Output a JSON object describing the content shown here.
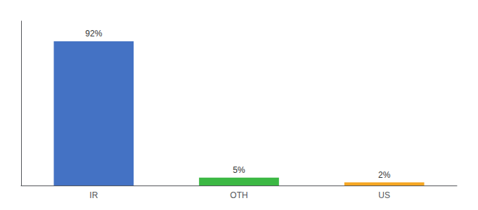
{
  "chart_data": {
    "type": "bar",
    "categories": [
      "IR",
      "OTH",
      "US"
    ],
    "values": [
      92,
      5,
      2
    ],
    "value_labels": [
      "92%",
      "5%",
      "2%"
    ],
    "data_labels": true,
    "colors": [
      "#4472c4",
      "#3cb844",
      "#f5a623"
    ],
    "ylim": [
      0,
      105
    ],
    "tick_labels": "x",
    "grid": false
  }
}
